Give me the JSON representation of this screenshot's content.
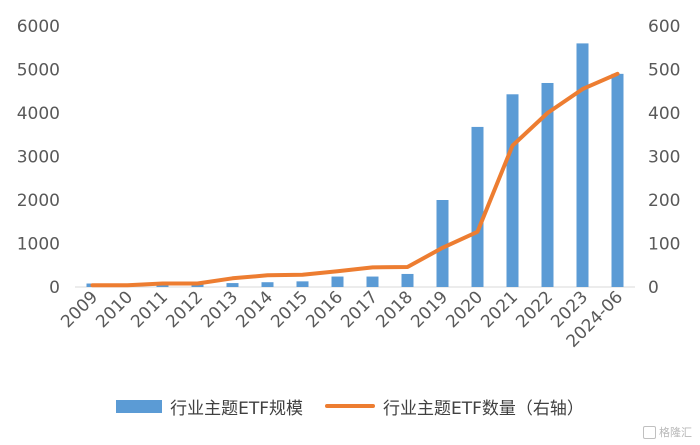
{
  "chart_data": {
    "type": "bar",
    "categories": [
      "2009",
      "2010",
      "2011",
      "2012",
      "2013",
      "2014",
      "2015",
      "2016",
      "2017",
      "2018",
      "2019",
      "2020",
      "2021",
      "2022",
      "2023",
      "2024-06"
    ],
    "series": [
      {
        "name": "行业主题ETF规模",
        "type": "bar",
        "axis": "left",
        "color": "#5b9bd5",
        "values": [
          80,
          60,
          70,
          80,
          90,
          110,
          130,
          240,
          240,
          300,
          2000,
          3680,
          4430,
          4690,
          5600,
          4900
        ]
      },
      {
        "name": "行业主题ETF数量（右轴）",
        "type": "line",
        "axis": "right",
        "color": "#ed7d31",
        "values": [
          4,
          4,
          8,
          8,
          20,
          27,
          28,
          36,
          45,
          46,
          90,
          127,
          325,
          400,
          455,
          490
        ]
      }
    ],
    "yleft": {
      "lim": [
        0,
        6000
      ],
      "ticks": [
        "0",
        "1000",
        "2000",
        "3000",
        "4000",
        "5000",
        "6000"
      ]
    },
    "yright": {
      "lim": [
        0,
        600
      ],
      "ticks": [
        "0",
        "100",
        "200",
        "300",
        "400",
        "500",
        "600"
      ]
    },
    "grid": false,
    "legend": "bottom"
  },
  "watermark": "格隆汇"
}
